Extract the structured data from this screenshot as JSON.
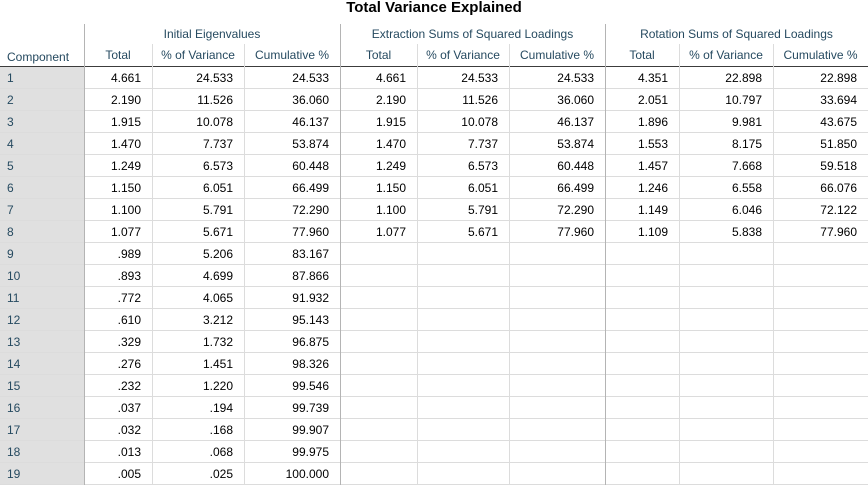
{
  "title": "Total Variance Explained",
  "groups": {
    "initial": "Initial Eigenvalues",
    "extraction": "Extraction Sums of Squared Loadings",
    "rotation": "Rotation Sums of Squared Loadings"
  },
  "sub_headers": [
    "Total",
    "% of Variance",
    "Cumulative %"
  ],
  "component_header": "Component",
  "rows": [
    [
      "1",
      "4.661",
      "24.533",
      "24.533",
      "4.661",
      "24.533",
      "24.533",
      "4.351",
      "22.898",
      "22.898"
    ],
    [
      "2",
      "2.190",
      "11.526",
      "36.060",
      "2.190",
      "11.526",
      "36.060",
      "2.051",
      "10.797",
      "33.694"
    ],
    [
      "3",
      "1.915",
      "10.078",
      "46.137",
      "1.915",
      "10.078",
      "46.137",
      "1.896",
      "9.981",
      "43.675"
    ],
    [
      "4",
      "1.470",
      "7.737",
      "53.874",
      "1.470",
      "7.737",
      "53.874",
      "1.553",
      "8.175",
      "51.850"
    ],
    [
      "5",
      "1.249",
      "6.573",
      "60.448",
      "1.249",
      "6.573",
      "60.448",
      "1.457",
      "7.668",
      "59.518"
    ],
    [
      "6",
      "1.150",
      "6.051",
      "66.499",
      "1.150",
      "6.051",
      "66.499",
      "1.246",
      "6.558",
      "66.076"
    ],
    [
      "7",
      "1.100",
      "5.791",
      "72.290",
      "1.100",
      "5.791",
      "72.290",
      "1.149",
      "6.046",
      "72.122"
    ],
    [
      "8",
      "1.077",
      "5.671",
      "77.960",
      "1.077",
      "5.671",
      "77.960",
      "1.109",
      "5.838",
      "77.960"
    ],
    [
      "9",
      ".989",
      "5.206",
      "83.167",
      "",
      "",
      "",
      "",
      "",
      ""
    ],
    [
      "10",
      ".893",
      "4.699",
      "87.866",
      "",
      "",
      "",
      "",
      "",
      ""
    ],
    [
      "11",
      ".772",
      "4.065",
      "91.932",
      "",
      "",
      "",
      "",
      "",
      ""
    ],
    [
      "12",
      ".610",
      "3.212",
      "95.143",
      "",
      "",
      "",
      "",
      "",
      ""
    ],
    [
      "13",
      ".329",
      "1.732",
      "96.875",
      "",
      "",
      "",
      "",
      "",
      ""
    ],
    [
      "14",
      ".276",
      "1.451",
      "98.326",
      "",
      "",
      "",
      "",
      "",
      ""
    ],
    [
      "15",
      ".232",
      "1.220",
      "99.546",
      "",
      "",
      "",
      "",
      "",
      ""
    ],
    [
      "16",
      ".037",
      ".194",
      "99.739",
      "",
      "",
      "",
      "",
      "",
      ""
    ],
    [
      "17",
      ".032",
      ".168",
      "99.907",
      "",
      "",
      "",
      "",
      "",
      ""
    ],
    [
      "18",
      ".013",
      ".068",
      "99.975",
      "",
      "",
      "",
      "",
      "",
      ""
    ],
    [
      "19",
      ".005",
      ".025",
      "100.000",
      "",
      "",
      "",
      "",
      "",
      ""
    ]
  ]
}
